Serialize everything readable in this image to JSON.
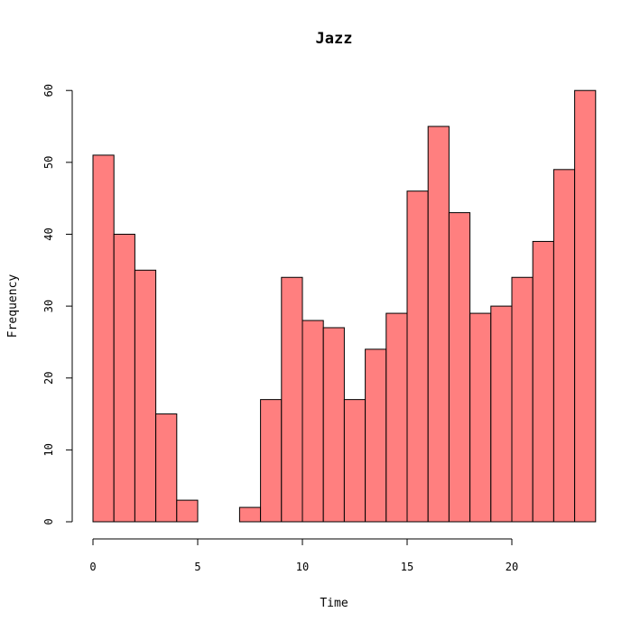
{
  "chart_data": {
    "type": "bar",
    "title": "Jazz",
    "xlabel": "Time",
    "ylabel": "Frequency",
    "bar_color": "#FF7F7F",
    "edge_color": "#000000",
    "bin_width": 1,
    "bins": [
      {
        "start": 0,
        "value": 51
      },
      {
        "start": 1,
        "value": 40
      },
      {
        "start": 2,
        "value": 35
      },
      {
        "start": 3,
        "value": 15
      },
      {
        "start": 4,
        "value": 3
      },
      {
        "start": 5,
        "value": 0
      },
      {
        "start": 6,
        "value": 0
      },
      {
        "start": 7,
        "value": 2
      },
      {
        "start": 8,
        "value": 17
      },
      {
        "start": 9,
        "value": 34
      },
      {
        "start": 10,
        "value": 28
      },
      {
        "start": 11,
        "value": 27
      },
      {
        "start": 12,
        "value": 17
      },
      {
        "start": 13,
        "value": 24
      },
      {
        "start": 14,
        "value": 29
      },
      {
        "start": 15,
        "value": 46
      },
      {
        "start": 16,
        "value": 55
      },
      {
        "start": 17,
        "value": 43
      },
      {
        "start": 18,
        "value": 29
      },
      {
        "start": 19,
        "value": 30
      },
      {
        "start": 20,
        "value": 34
      },
      {
        "start": 21,
        "value": 39
      },
      {
        "start": 22,
        "value": 49
      },
      {
        "start": 23,
        "value": 60
      }
    ],
    "xlim": [
      0,
      24
    ],
    "ylim": [
      0,
      60
    ],
    "xticks": [
      0,
      5,
      10,
      15,
      20
    ],
    "yticks": [
      0,
      10,
      20,
      30,
      40,
      50,
      60
    ],
    "grid": false,
    "legend": "none"
  }
}
